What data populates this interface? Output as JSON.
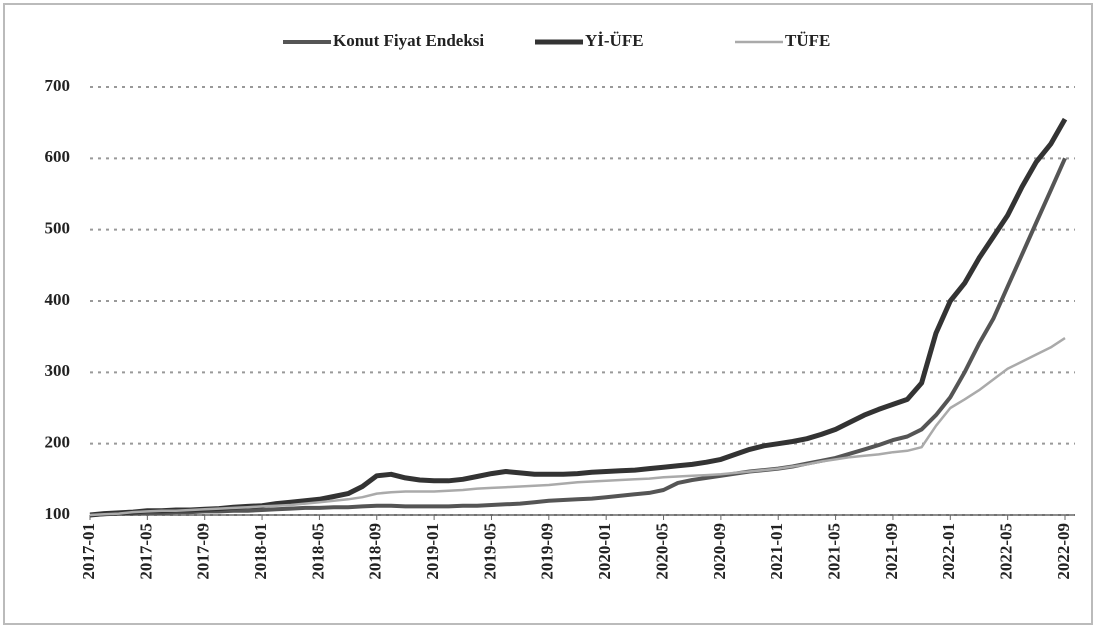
{
  "chart_data": {
    "type": "line",
    "categories": [
      "2017-01",
      null,
      null,
      null,
      "2017-05",
      null,
      null,
      null,
      "2017-09",
      null,
      null,
      null,
      "2018-01",
      null,
      null,
      null,
      "2018-05",
      null,
      null,
      null,
      "2018-09",
      null,
      null,
      null,
      "2019-01",
      null,
      null,
      null,
      "2019-05",
      null,
      null,
      null,
      "2019-09",
      null,
      null,
      null,
      "2020-01",
      null,
      null,
      null,
      "2020-05",
      null,
      null,
      null,
      "2020-09",
      null,
      null,
      null,
      "2021-01",
      null,
      null,
      null,
      "2021-05",
      null,
      null,
      null,
      "2021-09",
      null,
      null,
      null,
      "2022-01",
      null,
      null,
      null,
      "2022-05",
      null,
      null,
      null,
      "2022-09"
    ],
    "series": [
      {
        "name": "Konut Fiyat Endeksi",
        "color": "#555555",
        "values": [
          100,
          101,
          102,
          102,
          103,
          103,
          104,
          104,
          105,
          105,
          106,
          106,
          107,
          108,
          109,
          110,
          110,
          111,
          111,
          112,
          113,
          113,
          112,
          112,
          112,
          112,
          113,
          113,
          114,
          115,
          116,
          118,
          120,
          121,
          122,
          123,
          125,
          127,
          129,
          131,
          135,
          145,
          149,
          152,
          155,
          158,
          161,
          163,
          165,
          168,
          172,
          176,
          180,
          186,
          192,
          198,
          205,
          210,
          220,
          240,
          265,
          300,
          340,
          375,
          420,
          465,
          510,
          555,
          600
        ]
      },
      {
        "name": "Yİ-ÜFE",
        "color": "#333333",
        "values": [
          100,
          102,
          103,
          104,
          106,
          106,
          107,
          107,
          108,
          109,
          111,
          112,
          113,
          116,
          118,
          120,
          122,
          126,
          130,
          140,
          155,
          157,
          152,
          149,
          148,
          148,
          150,
          154,
          158,
          161,
          159,
          157,
          157,
          157,
          158,
          160,
          161,
          162,
          163,
          165,
          167,
          169,
          171,
          174,
          178,
          185,
          192,
          197,
          200,
          203,
          207,
          213,
          220,
          230,
          240,
          248,
          255,
          262,
          285,
          355,
          400,
          425,
          460,
          490,
          520,
          560,
          595,
          620,
          655
        ]
      },
      {
        "name": "TÜFE",
        "color": "#aaaaaa",
        "values": [
          100,
          101,
          102,
          104,
          105,
          106,
          106,
          107,
          108,
          109,
          110,
          111,
          112,
          113,
          114,
          116,
          118,
          120,
          122,
          125,
          130,
          132,
          133,
          133,
          133,
          134,
          135,
          137,
          138,
          139,
          140,
          141,
          142,
          144,
          146,
          147,
          148,
          149,
          150,
          151,
          153,
          154,
          155,
          156,
          157,
          159,
          161,
          163,
          165,
          168,
          171,
          175,
          178,
          181,
          183,
          185,
          188,
          190,
          195,
          225,
          250,
          262,
          275,
          290,
          305,
          315,
          325,
          335,
          348
        ]
      }
    ],
    "ylim": [
      100,
      700
    ],
    "yticks": [
      100,
      200,
      300,
      400,
      500,
      600,
      700
    ],
    "grid": true
  }
}
